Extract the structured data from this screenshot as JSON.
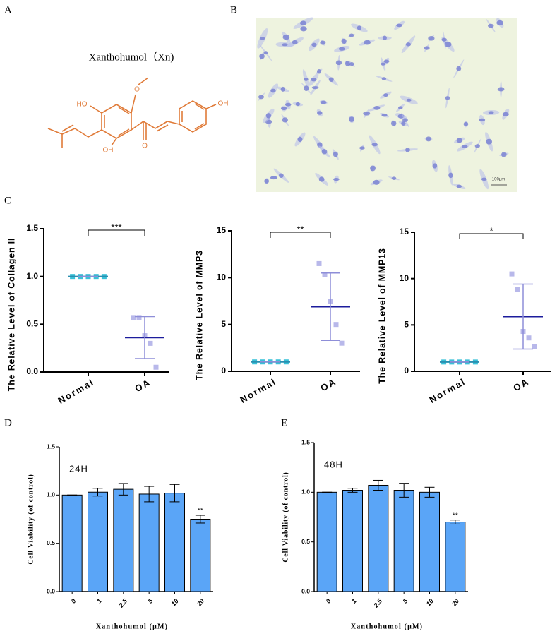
{
  "panel_labels": [
    "A",
    "B",
    "C",
    "D",
    "E"
  ],
  "structure": {
    "title": "Xanthohumol（Xn)",
    "atoms": [
      "HO",
      "O",
      "OH",
      "O",
      "OH"
    ]
  },
  "micrograph": {
    "scale_bar": "100μm"
  },
  "chart_data": [
    {
      "type": "dot",
      "ylabel": "The Relative Level of Collagen II",
      "categories": [
        "Normal",
        "OA"
      ],
      "points": [
        [
          1,
          1,
          1,
          1,
          1
        ],
        [
          0.57,
          0.57,
          0.38,
          0.3,
          0.05
        ]
      ],
      "means": [
        1,
        0.36
      ],
      "sd": [
        0,
        0.22
      ],
      "colors": [
        "#39c1d8",
        "#b8b8ea"
      ],
      "mean_colors": [
        "#2a8fb0",
        "#1c1c9c"
      ],
      "significance": "***",
      "ylim": [
        0,
        1.5
      ],
      "yticks": [
        {
          "value": 0,
          "label": "0.0"
        },
        {
          "value": 0.5,
          "label": "0.5"
        },
        {
          "value": 1,
          "label": "1.0"
        },
        {
          "value": 1.5,
          "label": "1.5"
        }
      ]
    },
    {
      "type": "dot",
      "ylabel": "The Relative Level of MMP3",
      "categories": [
        "Normal",
        "OA"
      ],
      "points": [
        [
          1,
          1,
          1,
          1,
          1
        ],
        [
          11.5,
          10.3,
          7.5,
          5,
          3
        ]
      ],
      "means": [
        1,
        6.9
      ],
      "sd": [
        0,
        3.6
      ],
      "colors": [
        "#39c1d8",
        "#b8b8ea"
      ],
      "mean_colors": [
        "#2a8fb0",
        "#1c1c9c"
      ],
      "significance": "**",
      "ylim": [
        0,
        15
      ],
      "yticks": [
        0,
        5,
        10,
        15
      ]
    },
    {
      "type": "dot",
      "ylabel": "The Relative Level of MMP13",
      "categories": [
        "Normal",
        "OA"
      ],
      "points": [
        [
          1,
          1,
          1,
          1,
          1
        ],
        [
          10.5,
          8.8,
          4.3,
          3.6,
          2.7
        ]
      ],
      "means": [
        1,
        5.9
      ],
      "sd": [
        0,
        3.5
      ],
      "colors": [
        "#39c1d8",
        "#b8b8ea"
      ],
      "mean_colors": [
        "#2a8fb0",
        "#1c1c9c"
      ],
      "significance": "*",
      "ylim": [
        0,
        15
      ],
      "yticks": [
        0,
        5,
        10,
        15
      ]
    },
    {
      "type": "bar",
      "annotation": "24H",
      "xlabel": "Xanthohumol (μM)",
      "ylabel": "Cell Viability (of control)",
      "categories": [
        "0",
        "1",
        "2.5",
        "5",
        "10",
        "20"
      ],
      "values": [
        1,
        1.03,
        1.06,
        1.01,
        1.02,
        0.75
      ],
      "errors": [
        0,
        0.04,
        0.06,
        0.08,
        0.09,
        0.04
      ],
      "significance": [
        null,
        null,
        null,
        null,
        null,
        "**"
      ],
      "color": "#5aa5f7",
      "ylim": [
        0,
        1.5
      ],
      "yticks": [
        {
          "value": 0,
          "label": "0.0"
        },
        {
          "value": 0.5,
          "label": "0.5"
        },
        {
          "value": 1,
          "label": "1.0"
        },
        {
          "value": 1.5,
          "label": "1.5"
        }
      ]
    },
    {
      "type": "bar",
      "annotation": "48H",
      "xlabel": "Xanthohumol (μM)",
      "ylabel": "Cell Viability (of control)",
      "categories": [
        "0",
        "1",
        "2.5",
        "5",
        "10",
        "20"
      ],
      "values": [
        1,
        1.02,
        1.07,
        1.02,
        1,
        0.7
      ],
      "errors": [
        0,
        0.02,
        0.05,
        0.07,
        0.05,
        0.02
      ],
      "significance": [
        null,
        null,
        null,
        null,
        null,
        "**"
      ],
      "color": "#5aa5f7",
      "ylim": [
        0,
        1.5
      ],
      "yticks": [
        {
          "value": 0,
          "label": "0.0"
        },
        {
          "value": 0.5,
          "label": "0.5"
        },
        {
          "value": 1,
          "label": "1.0"
        },
        {
          "value": 1.5,
          "label": "1.5"
        }
      ]
    }
  ]
}
